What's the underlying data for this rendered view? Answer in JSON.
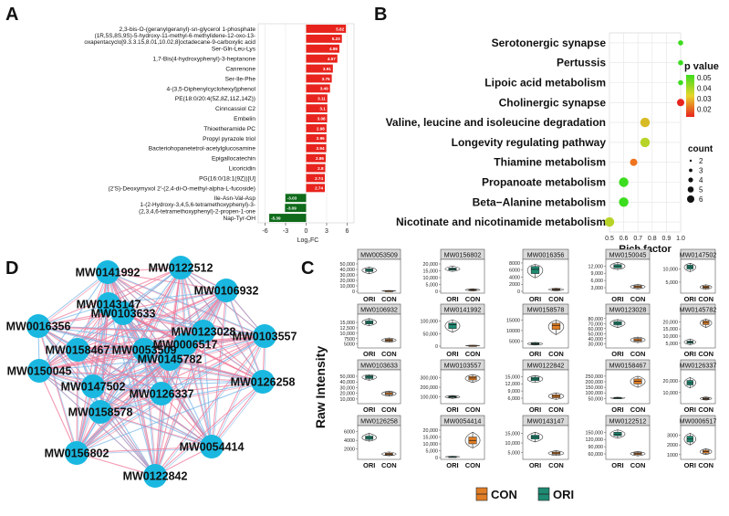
{
  "panels": {
    "a": "A",
    "b": "B",
    "c": "C",
    "d": "D"
  },
  "chart_data": [
    {
      "type": "bar",
      "orientation": "horizontal",
      "panel": "A",
      "xlabel": "Log₂FC",
      "xlim": [
        -7,
        7
      ],
      "xticks": [
        -6,
        -3,
        0,
        3,
        6
      ],
      "grid": true,
      "colors": {
        "up": "#e8231d",
        "down": "#0f6b1a"
      },
      "categories": [
        [
          "2,3-bis-O-(geranylgeranyl)-sn-glycerol  1-phosphate"
        ],
        [
          "(1R,5S,8S,9S)-5-hydroxy-11-methyl-6-methylidene-12-oxo-13-",
          "oxapentacyclo[9.3.3.15,8.01,10.02,8]octadecane-9-carboxylic  acid"
        ],
        [
          "Ser-Gln-Leu-Lys"
        ],
        [
          "1,7-Bis(4-hydroxyphenyl)-3-heptanone"
        ],
        [
          "Canrenone"
        ],
        [
          "Ser-Ile-Phe"
        ],
        [
          "4-(3,5-Diphenylcyclohexyl)phenol"
        ],
        [
          "PE(18:0/20:4(5Z,8Z,11Z,14Z))"
        ],
        [
          "Cinncassiol  C2"
        ],
        [
          "Embelin"
        ],
        [
          "Thioetheramide PC"
        ],
        [
          "Propyl  pyrazole  triol"
        ],
        [
          "Bacteriohopanetetrol-acetylglucosamine"
        ],
        [
          "Epigallocatechin"
        ],
        [
          "Licoricidin"
        ],
        [
          "PG(16:0/18:1(9Z))[U]"
        ],
        [
          "(2'S)-Deoxymyxol  2'-(2,4-di-O-methyl-alpha-L-fucoside)"
        ],
        [
          "Ile-Asn-Val-Asp"
        ],
        [
          "1-(2-Hydroxy-3,4,5,6-tetramethoxyphenyl)-3-",
          "(2,3,4,6-tetramethoxyphenyl)-2-propen-1-one"
        ],
        [
          "Nap-Tyr-OH"
        ]
      ],
      "values": [
        5.82,
        5.23,
        4.86,
        4.57,
        3.91,
        3.75,
        3.49,
        3.11,
        3.1,
        3.08,
        2.98,
        2.96,
        2.94,
        2.86,
        2.8,
        2.74,
        2.74,
        -3.03,
        -3.09,
        -5.39
      ],
      "labels": [
        "5.82",
        "5.23",
        "4.86",
        "4.57",
        "3.91",
        "3.75",
        "3.49",
        "3.11",
        "3.1",
        "3.08",
        "2.98",
        "2.96",
        "2.94",
        "2.86",
        "2.8",
        "2.74",
        "2.74",
        "-3.03",
        "-3.09",
        "-5.39"
      ]
    },
    {
      "type": "scatter",
      "panel": "B",
      "xlabel": "Rich factor",
      "xlim": [
        0.5,
        1.0
      ],
      "xticks": [
        0.5,
        0.6,
        0.7,
        0.8,
        0.9,
        1.0
      ],
      "xticklabels": [
        "0.5",
        "0.6",
        "0.7",
        "0.8",
        "0.9",
        "1.0"
      ],
      "grid": true,
      "categories": [
        "Serotonergic synapse",
        "Pertussis",
        "Lipoic acid metabolism",
        "Cholinergic synapse",
        "Valine, leucine and isoleucine degradation",
        "Longevity regulating pathway",
        "Thiamine metabolism",
        "Propanoate metabolism",
        "Beta−Alanine metabolism",
        "Nicotinate and nicotinamide metabolism"
      ],
      "rich_factor": [
        1.0,
        1.0,
        1.0,
        1.0,
        0.75,
        0.75,
        0.67,
        0.6,
        0.6,
        0.5
      ],
      "count": [
        1,
        1,
        1,
        2,
        3,
        3,
        2,
        3,
        3,
        3
      ],
      "p_value": [
        0.05,
        0.05,
        0.05,
        0.015,
        0.035,
        0.04,
        0.025,
        0.05,
        0.05,
        0.04
      ],
      "color_legend": {
        "title": "p value",
        "ticks": [
          "0.05",
          "0.04",
          "0.03",
          "0.02"
        ],
        "low": "#e8231d",
        "high": "#3cdc1e"
      },
      "size_legend": {
        "title": "count",
        "values": [
          "2",
          "3",
          "4",
          "5",
          "6"
        ]
      }
    },
    {
      "type": "network",
      "panel": "D",
      "nodes": [
        "MW0141992",
        "MW0122512",
        "MW0143147",
        "MW0106932",
        "MW0103633",
        "MW0016356",
        "MW0123028",
        "MW0103557",
        "MW0158467",
        "MW0053509",
        "MW0006517",
        "MW0145782",
        "MW0150045",
        "MW0147502",
        "MW0126258",
        "MW0126337",
        "MW0158578",
        "MW0156802",
        "MW0054414",
        "MW0122842"
      ],
      "edge_colors": {
        "positive": "#f07a9a",
        "negative": "#7ab8e8"
      },
      "node_color": "#1ab8e0"
    },
    {
      "type": "box",
      "panel": "C",
      "ylabel": "Raw Intensity",
      "groups": [
        "ORI",
        "CON"
      ],
      "legend": [
        {
          "name": "CON",
          "color": "#e07d25"
        },
        {
          "name": "ORI",
          "color": "#1e8a72"
        }
      ],
      "subplots": [
        {
          "title": "MW0053509",
          "yticks": [
            "50,000",
            "40,000",
            "30,000",
            "20,000",
            "10,000",
            "0"
          ],
          "ylim": [
            0,
            55000
          ],
          "ORI": [
            32000,
            36000,
            38500,
            41000,
            44000
          ],
          "CON": [
            200,
            600,
            900,
            1200,
            1600
          ]
        },
        {
          "title": "MW0156802",
          "yticks": [
            "20,000",
            "15,000",
            "10,000",
            "5,000",
            "0"
          ],
          "ylim": [
            0,
            22000
          ],
          "ORI": [
            14500,
            15500,
            16300,
            17000,
            18500
          ],
          "CON": [
            300,
            700,
            1000,
            1400,
            1900
          ]
        },
        {
          "title": "MW0016356",
          "yticks": [
            "8000",
            "6000",
            "4000",
            "2000",
            "0"
          ],
          "ylim": [
            0,
            8500
          ],
          "ORI": [
            3800,
            5000,
            6200,
            7000,
            7600
          ],
          "CON": [
            150,
            350,
            500,
            700,
            900
          ]
        },
        {
          "title": "MW0150045",
          "yticks": [
            "12,000",
            "9,000",
            "6,000",
            "3,000"
          ],
          "ylim": [
            1500,
            14000
          ],
          "ORI": [
            10500,
            11200,
            12000,
            12600,
            13500
          ],
          "CON": [
            2500,
            3000,
            3400,
            3800,
            4300
          ]
        },
        {
          "title": "MW0147502",
          "yticks": [
            "10,000",
            "5,000"
          ],
          "ylim": [
            1500,
            13000
          ],
          "ORI": [
            9000,
            10000,
            10800,
            11500,
            12200
          ],
          "CON": [
            2200,
            2700,
            3100,
            3500,
            4000
          ]
        },
        {
          "title": "MW0106932",
          "yticks": [
            "15,000",
            "12,500",
            "10,000",
            "7500",
            "5000"
          ],
          "ylim": [
            4000,
            18000
          ],
          "ORI": [
            13500,
            14300,
            15000,
            15800,
            16800
          ],
          "CON": [
            5800,
            6300,
            6800,
            7200,
            7800
          ]
        },
        {
          "title": "MW0141992",
          "yticks": [
            "100,000",
            "50,000",
            "0"
          ],
          "ylim": [
            0,
            120000
          ],
          "ORI": [
            55000,
            70000,
            85000,
            92000,
            105000
          ],
          "CON": [
            800,
            1500,
            2200,
            2900,
            3800
          ]
        },
        {
          "title": "MW0158578",
          "yticks": [
            "15000",
            "10000",
            "5000"
          ],
          "ylim": [
            2500,
            17000
          ],
          "ORI": [
            3000,
            3300,
            3700,
            4000,
            4300
          ],
          "CON": [
            8000,
            10500,
            12500,
            13500,
            15000
          ]
        },
        {
          "title": "MW0123028",
          "yticks": [
            "80,000",
            "70,000",
            "60,000",
            "50,000",
            "40,000",
            "30,000"
          ],
          "ylim": [
            25000,
            85000
          ],
          "ORI": [
            62000,
            67000,
            70500,
            74000,
            78000
          ],
          "CON": [
            32000,
            35000,
            37500,
            40000,
            43000
          ]
        },
        {
          "title": "MW0145782",
          "yticks": [
            "20,000",
            "15,000",
            "10,000",
            "5,000"
          ],
          "ylim": [
            3000,
            24000
          ],
          "ORI": [
            4000,
            5000,
            5800,
            6500,
            8000
          ],
          "CON": [
            16000,
            18000,
            19500,
            20500,
            21800
          ]
        },
        {
          "title": "MW0103633",
          "yticks": [
            "50,000",
            "40,000",
            "30,000",
            "20,000",
            "10,000"
          ],
          "ylim": [
            5000,
            58000
          ],
          "ORI": [
            43000,
            46000,
            48500,
            51000,
            53000
          ],
          "CON": [
            15000,
            17500,
            19500,
            21500,
            24000
          ]
        },
        {
          "title": "MW0103557",
          "yticks": [
            "300,000",
            "200,000",
            "100,000"
          ],
          "ylim": [
            50000,
            360000
          ],
          "ORI": [
            85000,
            95000,
            102000,
            108000,
            115000
          ],
          "CON": [
            250000,
            275000,
            295000,
            310000,
            330000
          ]
        },
        {
          "title": "MW0122842",
          "yticks": [
            "15,000",
            "12,000",
            "9,000",
            "6,000"
          ],
          "ylim": [
            4500,
            17000
          ],
          "ORI": [
            12500,
            13300,
            14000,
            14700,
            15400
          ],
          "CON": [
            5500,
            6200,
            6800,
            7400,
            8200
          ]
        },
        {
          "title": "MW0158467",
          "yticks": [
            "250,000",
            "200,000",
            "150,000",
            "100,000",
            "50,000"
          ],
          "ylim": [
            20000,
            290000
          ],
          "ORI": [
            48000,
            52000,
            55000,
            58000,
            62000
          ],
          "CON": [
            150000,
            180000,
            205000,
            225000,
            250000
          ]
        },
        {
          "title": "MW0126337",
          "yticks": [
            "20,000",
            "10,000"
          ],
          "ylim": [
            2000,
            28000
          ],
          "ORI": [
            14000,
            16500,
            18500,
            20500,
            23000
          ],
          "CON": [
            3500,
            4200,
            4800,
            5400,
            6200
          ]
        },
        {
          "title": "MW0126258",
          "yticks": [
            "6000",
            "4000",
            "2000"
          ],
          "ylim": [
            0,
            7000
          ],
          "ORI": [
            3800,
            4200,
            4600,
            5000,
            5600
          ],
          "CON": [
            400,
            600,
            800,
            1000,
            1300
          ]
        },
        {
          "title": "MW0054414",
          "yticks": [
            "20,000",
            "15,000",
            "10,000",
            "5,000",
            "0"
          ],
          "ylim": [
            0,
            22000
          ],
          "ORI": [
            200,
            400,
            600,
            800,
            1000
          ],
          "CON": [
            7000,
            10000,
            12500,
            15000,
            18500
          ]
        },
        {
          "title": "MW0143147",
          "yticks": [
            "15,000",
            "10,000",
            "5,000"
          ],
          "ylim": [
            2500,
            18000
          ],
          "ORI": [
            10500,
            12000,
            13000,
            14000,
            15500
          ],
          "CON": [
            3500,
            4200,
            4800,
            5300,
            6000
          ]
        },
        {
          "title": "MW0122512",
          "yticks": [
            "150,000",
            "120,000",
            "90,000",
            "60,000"
          ],
          "ylim": [
            45000,
            170000
          ],
          "ORI": [
            125000,
            135000,
            142000,
            150000,
            160000
          ],
          "CON": [
            52000,
            57000,
            61000,
            65000,
            70000
          ]
        },
        {
          "title": "MW0006517",
          "yticks": [
            "3000",
            "2000",
            "1000"
          ],
          "ylim": [
            700,
            3800
          ],
          "ORI": [
            2000,
            2300,
            2600,
            2900,
            3200
          ],
          "CON": [
            1000,
            1150,
            1300,
            1450,
            1600
          ]
        }
      ]
    }
  ]
}
